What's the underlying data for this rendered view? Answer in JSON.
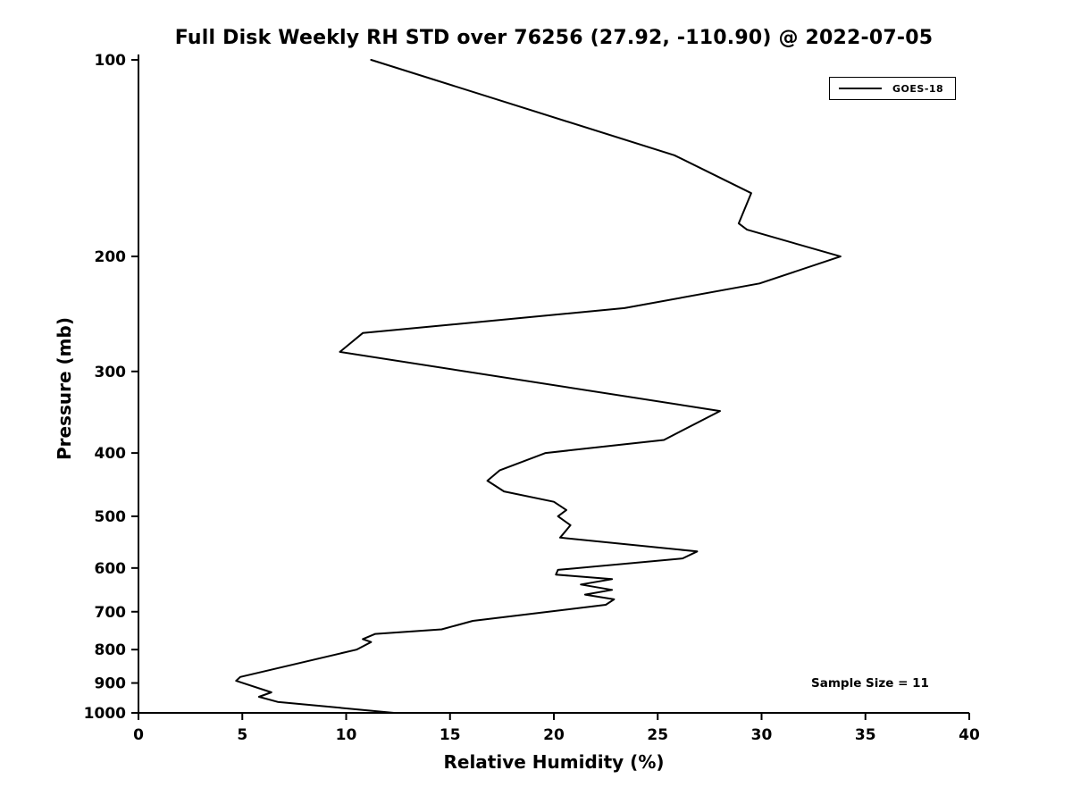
{
  "title": "Full Disk Weekly RH STD over 76256 (27.92, -110.90) @ 2022-07-05",
  "legend": {
    "label": "GOES-18"
  },
  "annotation": {
    "sample_size_text": "Sample Size = 11"
  },
  "chart_data": {
    "type": "line",
    "title": "Full Disk Weekly RH STD over 76256 (27.92, -110.90) @ 2022-07-05",
    "xlabel": "Relative Humidity (%)",
    "ylabel": "Pressure (mb)",
    "xlim": [
      0,
      40
    ],
    "ylim": [
      1000,
      100
    ],
    "y_scale": "log",
    "xticks": [
      0,
      5,
      10,
      15,
      20,
      25,
      30,
      35,
      40
    ],
    "yticks": [
      100,
      200,
      300,
      400,
      500,
      600,
      700,
      800,
      900,
      1000
    ],
    "grid": false,
    "legend_position": "upper right",
    "line_color": "#000000",
    "line_width": 2,
    "series": [
      {
        "name": "GOES-18",
        "pressure_mb": [
          100,
          140,
          160,
          178,
          182,
          200,
          220,
          240,
          262,
          280,
          345,
          382,
          400,
          425,
          441,
          458,
          475,
          489,
          500,
          516,
          539,
          566,
          580,
          604,
          614,
          624,
          636,
          648,
          659,
          670,
          683,
          723,
          745,
          757,
          771,
          779,
          800,
          881,
          893,
          930,
          945,
          962,
          1000
        ],
        "rh_percent": [
          11.2,
          25.8,
          29.5,
          28.9,
          29.3,
          33.8,
          29.9,
          23.4,
          10.8,
          9.7,
          28.0,
          25.3,
          19.6,
          17.4,
          16.8,
          17.6,
          20.0,
          20.6,
          20.2,
          20.8,
          20.3,
          26.9,
          26.2,
          20.2,
          20.1,
          22.8,
          21.3,
          22.8,
          21.5,
          22.9,
          22.5,
          16.1,
          14.6,
          11.4,
          10.8,
          11.2,
          10.5,
          4.9,
          4.7,
          6.4,
          5.8,
          6.7,
          12.3
        ]
      }
    ]
  }
}
